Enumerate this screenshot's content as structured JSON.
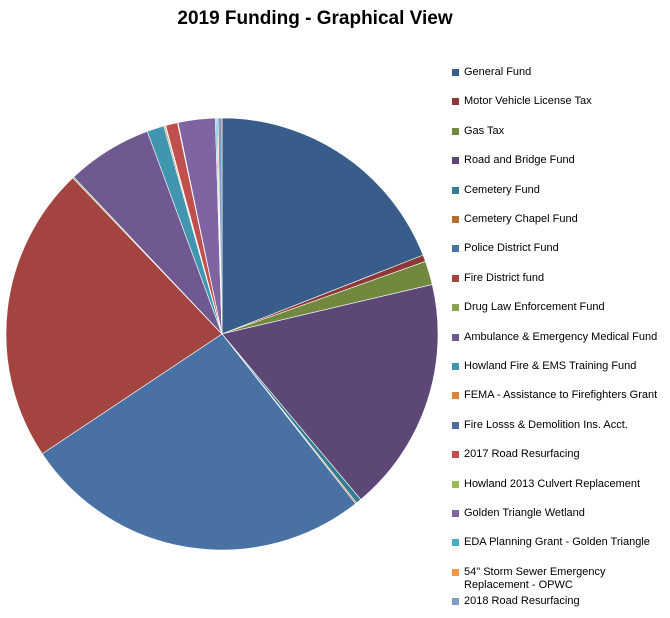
{
  "chart_data": {
    "type": "pie",
    "title": "2019 Funding - Graphical View",
    "categories": [
      "General Fund",
      "Motor Vehicle License Tax",
      "Gas Tax",
      "Road and Bridge Fund",
      "Cemetery Fund",
      "Cemetery Chapel Fund",
      "Police District Fund",
      "Fire District fund",
      "Drug Law Enforcement Fund",
      "Ambulance & Emergency Medical Fund",
      "Howland Fire & EMS Training Fund",
      "FEMA - Assistance to Firefighters Grant",
      "Fire Losss & Demolition Ins. Acct.",
      "2017 Road Resurfacing",
      "Howland 2013 Culvert Replacement",
      "Golden Triangle Wetland",
      "EDA Planning Grant - Golden Triangle",
      "54\" Storm Sewer Emergency Replacement - OPWC",
      "2018 Road Resurfacing"
    ],
    "values": [
      19.3,
      0.5,
      1.8,
      17.8,
      0.4,
      0.1,
      26.6,
      22.5,
      0.1,
      6.5,
      1.3,
      0.1,
      0.05,
      0.9,
      0.05,
      2.8,
      0.1,
      0.1,
      0.3
    ],
    "colors": [
      "#385D8A",
      "#8C3836",
      "#71893F",
      "#5C4776",
      "#357D91",
      "#B66D31",
      "#4A71A4",
      "#A44441",
      "#88A54E",
      "#705990",
      "#4096AE",
      "#DB843C",
      "#4F6E9E",
      "#C0504D",
      "#9BBB59",
      "#8064A2",
      "#4BACC6",
      "#F79646",
      "#7F9CC7"
    ],
    "start_angle_deg": 0,
    "direction": "clockwise",
    "legend_position": "right"
  }
}
